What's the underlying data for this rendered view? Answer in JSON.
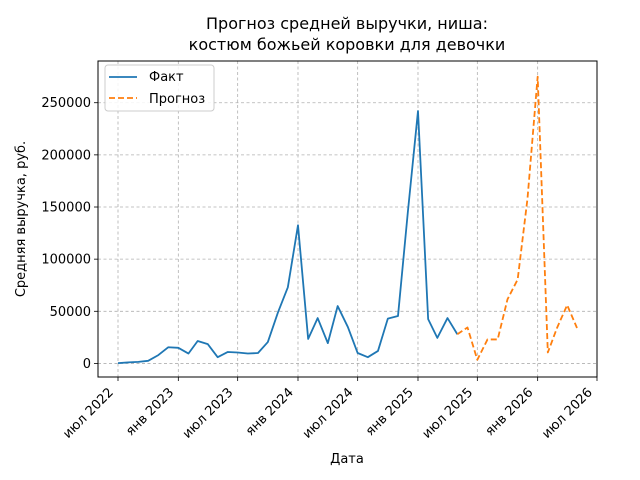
{
  "chart_data": {
    "type": "line",
    "title_lines": [
      "Прогноз средней выручки, ниша:",
      "костюм божьей коровки для девочки"
    ],
    "xlabel": "Дата",
    "ylabel": "Средняя выручка, руб.",
    "xlim": [
      "2022-05-01",
      "2026-07-01"
    ],
    "ylim": [
      -13000,
      290000
    ],
    "x_ticks": [
      {
        "date": "2022-07-01",
        "label": "июл 2022"
      },
      {
        "date": "2023-01-01",
        "label": "янв 2023"
      },
      {
        "date": "2023-07-01",
        "label": "июл 2023"
      },
      {
        "date": "2024-01-01",
        "label": "янв 2024"
      },
      {
        "date": "2024-07-01",
        "label": "июл 2024"
      },
      {
        "date": "2025-01-01",
        "label": "янв 2025"
      },
      {
        "date": "2025-07-01",
        "label": "июл 2025"
      },
      {
        "date": "2026-01-01",
        "label": "янв 2026"
      },
      {
        "date": "2026-07-01",
        "label": "июл 2026"
      }
    ],
    "y_ticks": [
      {
        "value": 0,
        "label": "0"
      },
      {
        "value": 50000,
        "label": "50000"
      },
      {
        "value": 100000,
        "label": "100000"
      },
      {
        "value": 150000,
        "label": "150000"
      },
      {
        "value": 200000,
        "label": "200000"
      },
      {
        "value": 250000,
        "label": "250000"
      }
    ],
    "grid": true,
    "legend_position": "top-left",
    "series": [
      {
        "name": "Факт",
        "color": "#1f77b4",
        "style": "solid",
        "points": [
          {
            "x": "2022-07-01",
            "y": 300
          },
          {
            "x": "2022-08-01",
            "y": 1000
          },
          {
            "x": "2022-09-01",
            "y": 1500
          },
          {
            "x": "2022-10-01",
            "y": 2500
          },
          {
            "x": "2022-11-01",
            "y": 8000
          },
          {
            "x": "2022-12-01",
            "y": 15500
          },
          {
            "x": "2023-01-01",
            "y": 15000
          },
          {
            "x": "2023-02-01",
            "y": 9500
          },
          {
            "x": "2023-03-01",
            "y": 21500
          },
          {
            "x": "2023-04-01",
            "y": 18500
          },
          {
            "x": "2023-05-01",
            "y": 6000
          },
          {
            "x": "2023-06-01",
            "y": 11000
          },
          {
            "x": "2023-07-01",
            "y": 10500
          },
          {
            "x": "2023-08-01",
            "y": 9500
          },
          {
            "x": "2023-09-01",
            "y": 10000
          },
          {
            "x": "2023-10-01",
            "y": 20500
          },
          {
            "x": "2023-11-01",
            "y": 49000
          },
          {
            "x": "2023-12-01",
            "y": 73000
          },
          {
            "x": "2024-01-01",
            "y": 132500
          },
          {
            "x": "2024-02-01",
            "y": 23500
          },
          {
            "x": "2024-03-01",
            "y": 43500
          },
          {
            "x": "2024-04-01",
            "y": 19500
          },
          {
            "x": "2024-05-01",
            "y": 55000
          },
          {
            "x": "2024-06-01",
            "y": 35000
          },
          {
            "x": "2024-07-01",
            "y": 10000
          },
          {
            "x": "2024-08-01",
            "y": 6000
          },
          {
            "x": "2024-09-01",
            "y": 12000
          },
          {
            "x": "2024-10-01",
            "y": 43000
          },
          {
            "x": "2024-11-01",
            "y": 45500
          },
          {
            "x": "2024-12-01",
            "y": 145000
          },
          {
            "x": "2025-01-01",
            "y": 242000
          },
          {
            "x": "2025-02-01",
            "y": 42500
          },
          {
            "x": "2025-03-01",
            "y": 24500
          },
          {
            "x": "2025-04-01",
            "y": 43500
          },
          {
            "x": "2025-05-01",
            "y": 28000
          }
        ]
      },
      {
        "name": "Прогноз",
        "color": "#ff7f0e",
        "style": "dashed",
        "points": [
          {
            "x": "2025-05-01",
            "y": 28000
          },
          {
            "x": "2025-06-01",
            "y": 34500
          },
          {
            "x": "2025-07-01",
            "y": 3500
          },
          {
            "x": "2025-08-01",
            "y": 23000
          },
          {
            "x": "2025-09-01",
            "y": 23000
          },
          {
            "x": "2025-10-01",
            "y": 61500
          },
          {
            "x": "2025-11-01",
            "y": 80500
          },
          {
            "x": "2025-12-01",
            "y": 158000
          },
          {
            "x": "2026-01-01",
            "y": 275000
          },
          {
            "x": "2026-02-01",
            "y": 10500
          },
          {
            "x": "2026-03-01",
            "y": 34000
          },
          {
            "x": "2026-04-01",
            "y": 56000
          },
          {
            "x": "2026-05-01",
            "y": 34000
          }
        ]
      }
    ]
  }
}
